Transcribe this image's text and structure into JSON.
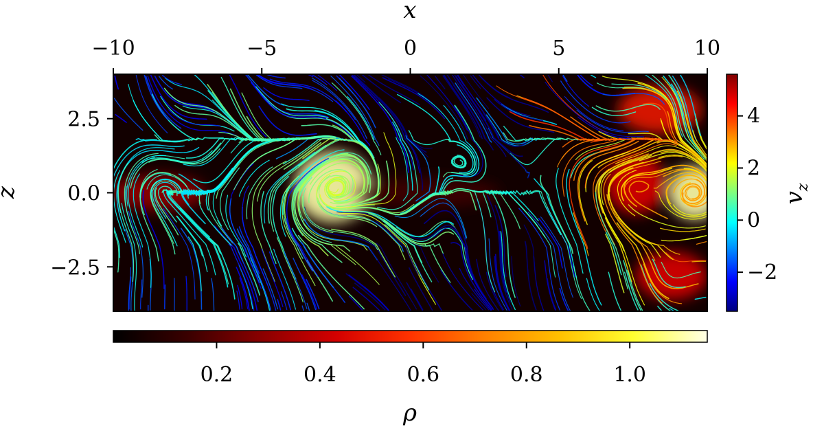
{
  "chart_data": {
    "type": "heatmap",
    "title": "",
    "x_axis": {
      "label": "x",
      "position": "top",
      "range": [
        -10,
        10
      ],
      "ticks": [
        -10,
        -5,
        0,
        5,
        10
      ],
      "tick_labels": [
        "−10",
        "−5",
        "0",
        "5",
        "10"
      ]
    },
    "y_axis": {
      "label": "z",
      "range": [
        -4,
        4
      ],
      "ticks": [
        2.5,
        0.0,
        -2.5
      ],
      "tick_labels": [
        "2.5",
        "0.0",
        "−2.5"
      ]
    },
    "field": {
      "name": "ρ",
      "colormap": "hot",
      "range": [
        0,
        1.15
      ],
      "colorbar_orientation": "horizontal",
      "colorbar_position": "bottom",
      "colorbar_label": "ρ",
      "ticks": [
        0.2,
        0.4,
        0.6,
        0.8,
        1.0
      ],
      "tick_labels": [
        "0.2",
        "0.4",
        "0.6",
        "0.8",
        "1.0"
      ],
      "colors": [
        "#000000",
        "#3a0000",
        "#8a0000",
        "#d40000",
        "#ff3300",
        "#ff8000",
        "#ffc000",
        "#ffff30",
        "#ffffe8"
      ]
    },
    "streamline_color": {
      "name": "v_z",
      "colormap": "jet",
      "range": [
        -3.5,
        5.6
      ],
      "colorbar_orientation": "vertical",
      "colorbar_position": "right",
      "colorbar_label": "v",
      "colorbar_label_sub": "z",
      "ticks": [
        4,
        2,
        0,
        -2
      ],
      "tick_labels": [
        "4",
        "2",
        "0",
        "−2"
      ],
      "colors": [
        "#00007f",
        "#0000ff",
        "#007fff",
        "#00ffff",
        "#7fff7f",
        "#ffff00",
        "#ff7f00",
        "#ff0000",
        "#7f0000"
      ]
    },
    "density_blobs": [
      {
        "x": -2.6,
        "z": 0.2,
        "rx": 1.3,
        "rz": 1.2,
        "rho": 1.1
      },
      {
        "x": 9.6,
        "z": 0.0,
        "rx": 0.9,
        "rz": 0.9,
        "rho": 1.1
      },
      {
        "x": 7.6,
        "z": 0.3,
        "rx": 1.0,
        "rz": 1.0,
        "rho": 0.45
      },
      {
        "x": -8.5,
        "z": 0.0,
        "rx": 1.6,
        "rz": 0.6,
        "rho": 0.3
      },
      {
        "x": 8.4,
        "z": 2.8,
        "rx": 1.4,
        "rz": 0.8,
        "rho": 0.5
      },
      {
        "x": 8.8,
        "z": -2.8,
        "rx": 1.2,
        "rz": 0.8,
        "rho": 0.45
      },
      {
        "x": 0.5,
        "z": 0.0,
        "rx": 2.5,
        "rz": 0.5,
        "rho": 0.15
      }
    ]
  }
}
